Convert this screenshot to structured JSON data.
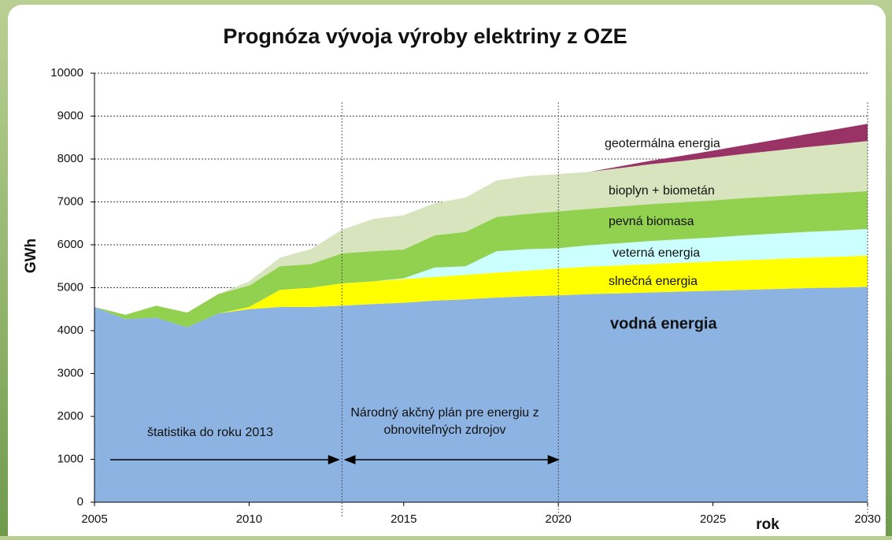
{
  "chart_data": {
    "type": "stacked_area",
    "title": "Prognóza vývoja výroby elektriny z OZE",
    "ylabel": "GWh",
    "xlabel": "rok",
    "x": [
      2005,
      2006,
      2007,
      2008,
      2009,
      2010,
      2011,
      2012,
      2013,
      2014,
      2015,
      2016,
      2017,
      2018,
      2019,
      2020,
      2021,
      2022,
      2023,
      2024,
      2025,
      2026,
      2027,
      2028,
      2029,
      2030
    ],
    "series": [
      {
        "name": "vodná energia",
        "color": "#8db3e2",
        "values": [
          4550,
          4270,
          4300,
          4080,
          4400,
          4500,
          4550,
          4550,
          4580,
          4620,
          4650,
          4700,
          4730,
          4770,
          4800,
          4820,
          4850,
          4870,
          4890,
          4910,
          4930,
          4950,
          4970,
          4990,
          5000,
          5020
        ]
      },
      {
        "name": "slnečná energia",
        "color": "#ffff00",
        "values": [
          0,
          0,
          0,
          0,
          0,
          50,
          400,
          450,
          520,
          530,
          550,
          550,
          570,
          580,
          600,
          630,
          640,
          650,
          660,
          670,
          680,
          690,
          700,
          710,
          720,
          730
        ]
      },
      {
        "name": "veterná energia",
        "color": "#ccffff",
        "values": [
          0,
          0,
          0,
          0,
          0,
          0,
          0,
          0,
          0,
          0,
          20,
          220,
          200,
          500,
          500,
          470,
          500,
          520,
          540,
          550,
          560,
          580,
          590,
          600,
          610,
          620
        ]
      },
      {
        "name": "pevná biomasa",
        "color": "#92d050",
        "values": [
          0,
          100,
          280,
          340,
          450,
          500,
          550,
          550,
          700,
          700,
          670,
          750,
          800,
          800,
          820,
          860,
          850,
          855,
          860,
          860,
          865,
          870,
          870,
          875,
          880,
          880
        ]
      },
      {
        "name": "bioplyn + biometán",
        "color": "#d7e4bd",
        "values": [
          0,
          0,
          0,
          0,
          0,
          100,
          200,
          350,
          550,
          750,
          800,
          750,
          800,
          850,
          880,
          870,
          860,
          895,
          930,
          965,
          1000,
          1030,
          1065,
          1100,
          1135,
          1170
        ]
      },
      {
        "name": "geotermálna energia",
        "color": "#993366",
        "values": [
          0,
          0,
          0,
          0,
          0,
          0,
          0,
          0,
          0,
          0,
          0,
          0,
          0,
          0,
          0,
          0,
          0,
          40,
          80,
          120,
          160,
          200,
          250,
          300,
          350,
          400
        ]
      }
    ],
    "annotations": [
      "štatistika do roku 2013",
      "Národný akčný plán pre energiu z",
      "obnoviteľných zdrojov"
    ],
    "reference_lines": [
      2013,
      2020,
      2030
    ],
    "xlim": [
      2005,
      2030
    ],
    "xticks": [
      2005,
      2010,
      2015,
      2020,
      2025,
      2030
    ],
    "ylim": [
      0,
      10000
    ],
    "yticks": [
      0,
      1000,
      2000,
      3000,
      4000,
      5000,
      6000,
      7000,
      8000,
      9000,
      10000
    ],
    "grid": true
  }
}
